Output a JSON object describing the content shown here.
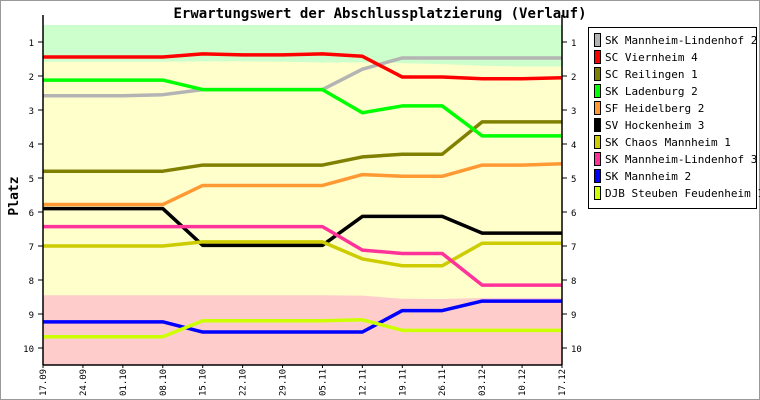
{
  "chart_data": {
    "type": "line",
    "title": "Erwartungswert der Abschlussplatzierung (Verlauf)",
    "xlabel": "",
    "ylabel": "Platz",
    "ylim": [
      0.5,
      10.5
    ],
    "y_inverted": true,
    "y_ticks": [
      1,
      2,
      3,
      4,
      5,
      6,
      7,
      8,
      9,
      10
    ],
    "x": [
      "17.09",
      "24.09",
      "01.10",
      "08.10",
      "15.10",
      "22.10",
      "29.10",
      "05.11",
      "12.11",
      "19.11",
      "26.11",
      "03.12",
      "10.12",
      "17.12"
    ],
    "legend_position": "right",
    "zones": {
      "promotion_boundary": [
        1.58,
        1.58,
        1.58,
        1.58,
        1.57,
        1.57,
        1.58,
        1.6,
        1.6,
        1.62,
        1.65,
        1.7,
        1.72,
        1.72
      ],
      "relegation_boundary": [
        8.45,
        8.45,
        8.45,
        8.45,
        8.45,
        8.45,
        8.45,
        8.45,
        8.46,
        8.55,
        8.56,
        8.53,
        8.53,
        8.53
      ],
      "colors": {
        "promotion": "#ccffcc",
        "middle": "#ffffcc",
        "relegation": "#ffcccc"
      }
    },
    "series": [
      {
        "name": "SK Mannheim-Lindenhof 2",
        "color": "#b4b4b4",
        "values": [
          2.58,
          2.58,
          2.58,
          2.55,
          2.4,
          2.4,
          2.4,
          2.4,
          1.8,
          1.47,
          1.47,
          1.47,
          1.47,
          1.47
        ]
      },
      {
        "name": "SC Viernheim 4",
        "color": "#ff0000",
        "values": [
          1.44,
          1.44,
          1.44,
          1.44,
          1.35,
          1.38,
          1.38,
          1.35,
          1.42,
          2.03,
          2.03,
          2.08,
          2.08,
          2.05
        ]
      },
      {
        "name": "SC Reilingen 1",
        "color": "#808000",
        "values": [
          4.8,
          4.8,
          4.8,
          4.8,
          4.62,
          4.62,
          4.62,
          4.62,
          4.38,
          4.3,
          4.3,
          3.35,
          3.35,
          3.35
        ]
      },
      {
        "name": "SK Ladenburg 2",
        "color": "#00ff00",
        "values": [
          2.12,
          2.12,
          2.12,
          2.12,
          2.4,
          2.4,
          2.4,
          2.4,
          3.08,
          2.88,
          2.88,
          3.76,
          3.76,
          3.76
        ]
      },
      {
        "name": "SF Heidelberg 2",
        "color": "#ff9933",
        "values": [
          5.78,
          5.78,
          5.78,
          5.78,
          5.22,
          5.22,
          5.22,
          5.22,
          4.9,
          4.95,
          4.95,
          4.62,
          4.62,
          4.58
        ]
      },
      {
        "name": "SV Hockenheim 3",
        "color": "#000000",
        "values": [
          5.9,
          5.9,
          5.9,
          5.9,
          6.98,
          6.98,
          6.98,
          6.98,
          6.13,
          6.13,
          6.13,
          6.62,
          6.62,
          6.62
        ]
      },
      {
        "name": "SK Chaos Mannheim 1",
        "color": "#cccc00",
        "values": [
          7.0,
          7.0,
          7.0,
          7.0,
          6.88,
          6.88,
          6.88,
          6.88,
          7.38,
          7.58,
          7.58,
          6.92,
          6.92,
          6.92
        ]
      },
      {
        "name": "SK Mannheim-Lindenhof 3",
        "color": "#ff3399",
        "values": [
          6.43,
          6.43,
          6.43,
          6.43,
          6.43,
          6.43,
          6.43,
          6.43,
          7.12,
          7.22,
          7.22,
          8.15,
          8.15,
          8.15
        ]
      },
      {
        "name": "SK Mannheim 2",
        "color": "#0000ff",
        "values": [
          9.23,
          9.23,
          9.23,
          9.23,
          9.53,
          9.53,
          9.53,
          9.53,
          9.53,
          8.9,
          8.9,
          8.62,
          8.62,
          8.62
        ]
      },
      {
        "name": "DJB Steuben Feudenheim 1",
        "color": "#ccff00",
        "values": [
          9.67,
          9.67,
          9.67,
          9.67,
          9.2,
          9.2,
          9.2,
          9.2,
          9.17,
          9.48,
          9.48,
          9.48,
          9.48,
          9.48
        ]
      }
    ]
  }
}
